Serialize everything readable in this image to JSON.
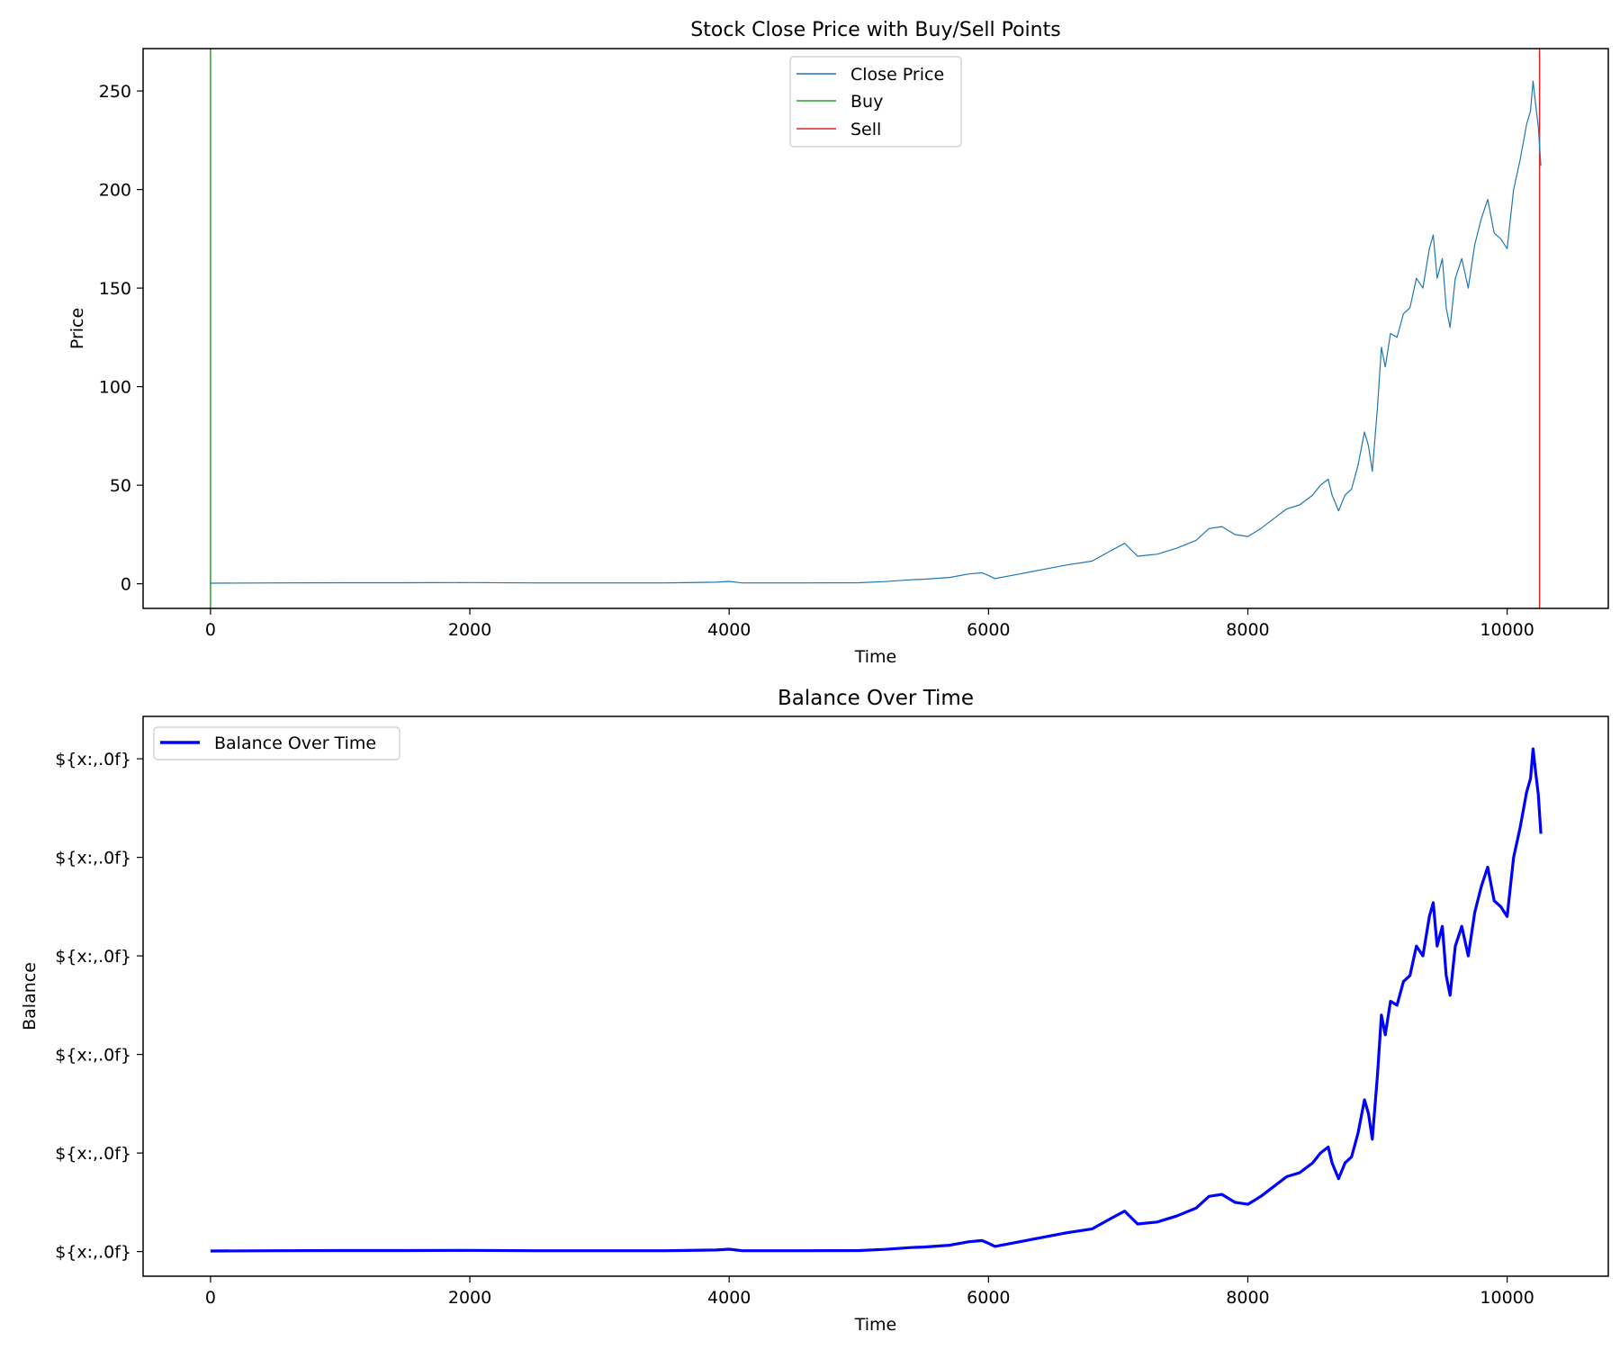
{
  "chart_data": [
    {
      "type": "line",
      "title": "Stock Close Price with Buy/Sell Points",
      "xlabel": "Time",
      "ylabel": "Price",
      "xlim": [
        -520,
        10780
      ],
      "ylim": [
        -12.5,
        271.5
      ],
      "xticks": [
        "0",
        "2000",
        "4000",
        "6000",
        "8000",
        "10000"
      ],
      "yticks": [
        "0",
        "50",
        "100",
        "150",
        "200",
        "250"
      ],
      "grid": false,
      "legend_position": "upper center",
      "legend": [
        "Close Price",
        "Buy",
        "Sell"
      ],
      "series": [
        {
          "name": "Close Price",
          "color": "#1f77b4",
          "x": [
            0,
            500,
            1000,
            1500,
            2000,
            2500,
            3000,
            3500,
            3900,
            4000,
            4100,
            4500,
            5000,
            5200,
            5400,
            5500,
            5700,
            5850,
            5950,
            6000,
            6050,
            6200,
            6400,
            6600,
            6800,
            6950,
            7050,
            7150,
            7300,
            7450,
            7600,
            7700,
            7800,
            7900,
            8000,
            8100,
            8200,
            8300,
            8400,
            8500,
            8560,
            8620,
            8650,
            8700,
            8750,
            8800,
            8850,
            8900,
            8930,
            8960,
            9000,
            9030,
            9060,
            9100,
            9150,
            9200,
            9250,
            9300,
            9350,
            9400,
            9430,
            9460,
            9500,
            9530,
            9560,
            9600,
            9650,
            9700,
            9750,
            9800,
            9850,
            9900,
            9950,
            10000,
            10050,
            10100,
            10150,
            10180,
            10200,
            10220,
            10240,
            10260
          ],
          "y": [
            0.3,
            0.4,
            0.5,
            0.5,
            0.6,
            0.4,
            0.4,
            0.4,
            0.8,
            1.2,
            0.4,
            0.4,
            0.5,
            1.1,
            2.0,
            2.3,
            3.2,
            5.0,
            5.6,
            4.2,
            2.6,
            4.5,
            7.0,
            9.5,
            11.5,
            17.0,
            20.5,
            14.0,
            15.0,
            18.0,
            22.0,
            28.0,
            29.0,
            25.0,
            24.0,
            28.0,
            33.0,
            38.0,
            40.0,
            45.0,
            50.0,
            53.0,
            45.0,
            37.0,
            45.0,
            48.0,
            60.0,
            77.0,
            70.0,
            57.0,
            90.0,
            120.0,
            110.0,
            127.0,
            125.0,
            137.0,
            140.0,
            155.0,
            150.0,
            170.0,
            177.0,
            155.0,
            165.0,
            140.0,
            130.0,
            155.0,
            165.0,
            150.0,
            172.0,
            185.0,
            195.0,
            178.0,
            175.0,
            170.0,
            200.0,
            215.0,
            233.0,
            240.0,
            255.0,
            243.0,
            232.0,
            212.0
          ]
        }
      ],
      "vlines": [
        {
          "name": "Buy",
          "x": 0,
          "color": "#2ca02c"
        },
        {
          "name": "Sell",
          "x": 10250,
          "color": "#d62728"
        }
      ]
    },
    {
      "type": "line",
      "title": "Balance Over Time",
      "xlabel": "Time",
      "ylabel": "Balance",
      "xlim": [
        -520,
        10780
      ],
      "ylim": [
        -12.5,
        271.5
      ],
      "xticks": [
        "0",
        "2000",
        "4000",
        "6000",
        "8000",
        "10000"
      ],
      "yticks": [
        "${x:,.0f}",
        "${x:,.0f}",
        "${x:,.0f}",
        "${x:,.0f}",
        "${x:,.0f}",
        "${x:,.0f}"
      ],
      "grid": false,
      "legend_position": "upper left",
      "legend": [
        "Balance Over Time"
      ],
      "series": [
        {
          "name": "Balance Over Time",
          "color": "#0000ff",
          "x": [
            0,
            500,
            1000,
            1500,
            2000,
            2500,
            3000,
            3500,
            3900,
            4000,
            4100,
            4500,
            5000,
            5200,
            5400,
            5500,
            5700,
            5850,
            5950,
            6000,
            6050,
            6200,
            6400,
            6600,
            6800,
            6950,
            7050,
            7150,
            7300,
            7450,
            7600,
            7700,
            7800,
            7900,
            8000,
            8100,
            8200,
            8300,
            8400,
            8500,
            8560,
            8620,
            8650,
            8700,
            8750,
            8800,
            8850,
            8900,
            8930,
            8960,
            9000,
            9030,
            9060,
            9100,
            9150,
            9200,
            9250,
            9300,
            9350,
            9400,
            9430,
            9460,
            9500,
            9530,
            9560,
            9600,
            9650,
            9700,
            9750,
            9800,
            9850,
            9900,
            9950,
            10000,
            10050,
            10100,
            10150,
            10180,
            10200,
            10220,
            10240,
            10260
          ],
          "y": [
            0.3,
            0.4,
            0.5,
            0.5,
            0.6,
            0.4,
            0.4,
            0.4,
            0.8,
            1.2,
            0.4,
            0.4,
            0.5,
            1.1,
            2.0,
            2.3,
            3.2,
            5.0,
            5.6,
            4.2,
            2.6,
            4.5,
            7.0,
            9.5,
            11.5,
            17.0,
            20.5,
            14.0,
            15.0,
            18.0,
            22.0,
            28.0,
            29.0,
            25.0,
            24.0,
            28.0,
            33.0,
            38.0,
            40.0,
            45.0,
            50.0,
            53.0,
            45.0,
            37.0,
            45.0,
            48.0,
            60.0,
            77.0,
            70.0,
            57.0,
            90.0,
            120.0,
            110.0,
            127.0,
            125.0,
            137.0,
            140.0,
            155.0,
            150.0,
            170.0,
            177.0,
            155.0,
            165.0,
            140.0,
            130.0,
            155.0,
            165.0,
            150.0,
            172.0,
            185.0,
            195.0,
            178.0,
            175.0,
            170.0,
            200.0,
            215.0,
            233.0,
            240.0,
            255.0,
            243.0,
            232.0,
            212.0
          ]
        }
      ]
    }
  ]
}
